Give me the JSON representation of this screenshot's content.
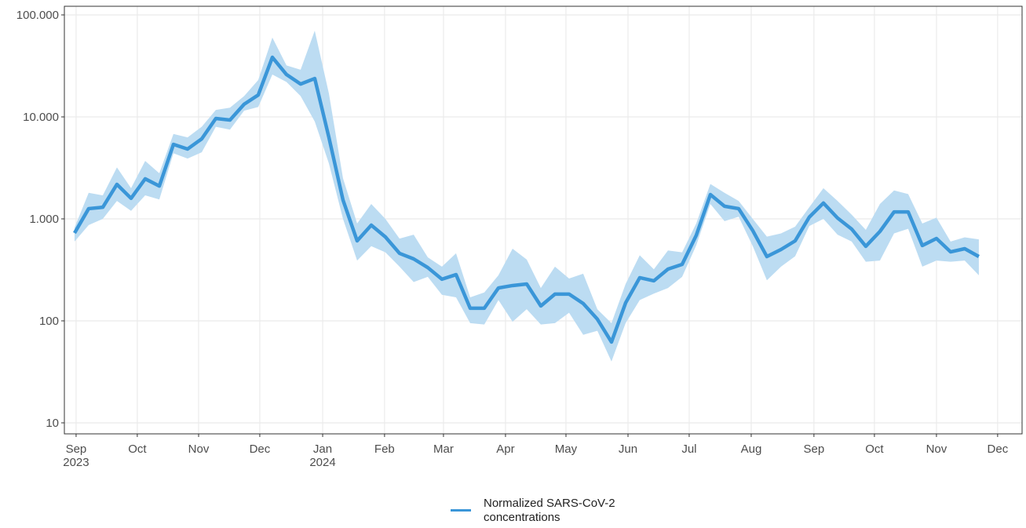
{
  "chart_data": {
    "type": "line",
    "log_y": true,
    "grid": true,
    "legend": "bottom",
    "x": [
      0,
      1,
      2,
      3,
      4,
      5,
      6,
      7,
      8,
      9,
      10,
      11,
      12,
      13,
      14,
      15,
      16,
      17,
      18,
      19,
      20,
      21,
      22,
      23,
      24,
      25,
      26,
      27,
      28,
      29,
      30,
      31,
      32,
      33,
      34,
      35,
      36,
      37,
      38,
      39,
      40,
      41,
      42,
      43,
      44,
      45,
      46,
      47,
      48,
      49,
      50,
      51,
      52,
      53,
      54,
      55,
      56,
      57,
      58,
      59,
      60,
      61,
      62,
      63,
      64
    ],
    "series": [
      {
        "name": "Normalized SARS-CoV-2 concentrations",
        "color": "#3a96d8",
        "band_color": "#bcdcf2",
        "values": [
          727,
          1260,
          1300,
          2180,
          1590,
          2470,
          2100,
          5380,
          4840,
          6090,
          9650,
          9320,
          13300,
          16400,
          38400,
          26000,
          21000,
          23800,
          6310,
          1530,
          609,
          868,
          665,
          459,
          405,
          333,
          256,
          284,
          133,
          133,
          210,
          222,
          230,
          140,
          183,
          183,
          148,
          104,
          62,
          150,
          265,
          247,
          322,
          358,
          689,
          1730,
          1330,
          1260,
          767,
          427,
          501,
          609,
          1040,
          1430,
          1020,
          794,
          538,
          753,
          1170,
          1170,
          548,
          642,
          475,
          510,
          427
        ],
        "lower": [
          600,
          870,
          1000,
          1500,
          1200,
          1700,
          1550,
          4400,
          3900,
          4500,
          8000,
          7500,
          11500,
          12500,
          26000,
          22000,
          16000,
          9000,
          3500,
          1000,
          390,
          540,
          470,
          340,
          240,
          270,
          180,
          170,
          95,
          92,
          160,
          98,
          130,
          92,
          95,
          120,
          73,
          80,
          40,
          95,
          160,
          185,
          210,
          270,
          550,
          1400,
          950,
          1050,
          540,
          250,
          340,
          430,
          850,
          1000,
          700,
          600,
          380,
          390,
          720,
          800,
          340,
          390,
          380,
          390,
          280
        ],
        "upper": [
          820,
          1800,
          1700,
          3200,
          2000,
          3700,
          2800,
          6800,
          6300,
          8000,
          11700,
          12300,
          16000,
          23000,
          60000,
          32000,
          29000,
          70000,
          17000,
          2500,
          900,
          1400,
          1000,
          640,
          700,
          420,
          340,
          460,
          170,
          190,
          280,
          510,
          400,
          210,
          340,
          260,
          290,
          130,
          95,
          230,
          440,
          320,
          490,
          470,
          900,
          2200,
          1800,
          1500,
          1000,
          670,
          720,
          840,
          1300,
          2000,
          1500,
          1100,
          780,
          1400,
          1900,
          1750,
          900,
          1030,
          600,
          660,
          630
        ]
      }
    ],
    "xlim": [
      -0.72,
      67.06
    ],
    "xticks": [
      {
        "value": 0.11,
        "label": "Sep\n2023"
      },
      {
        "value": 4.44,
        "label": "Oct"
      },
      {
        "value": 8.78,
        "label": "Nov"
      },
      {
        "value": 13.11,
        "label": "Dec"
      },
      {
        "value": 17.56,
        "label": "Jan\n2024"
      },
      {
        "value": 21.94,
        "label": "Feb"
      },
      {
        "value": 26.11,
        "label": "Mar"
      },
      {
        "value": 30.5,
        "label": "Apr"
      },
      {
        "value": 34.78,
        "label": "May"
      },
      {
        "value": 39.17,
        "label": "Jun"
      },
      {
        "value": 43.5,
        "label": "Jul"
      },
      {
        "value": 47.89,
        "label": "Aug"
      },
      {
        "value": 52.33,
        "label": "Sep"
      },
      {
        "value": 56.61,
        "label": "Oct"
      },
      {
        "value": 61,
        "label": "Nov"
      },
      {
        "value": 65.33,
        "label": "Dec"
      }
    ],
    "ylim": [
      7.8,
      121500
    ],
    "yticks": [
      10,
      100,
      {
        "value": 1000,
        "label": "1.000"
      },
      {
        "value": 10000,
        "label": "10.000"
      },
      {
        "value": 100000,
        "label": "100.000"
      }
    ]
  }
}
